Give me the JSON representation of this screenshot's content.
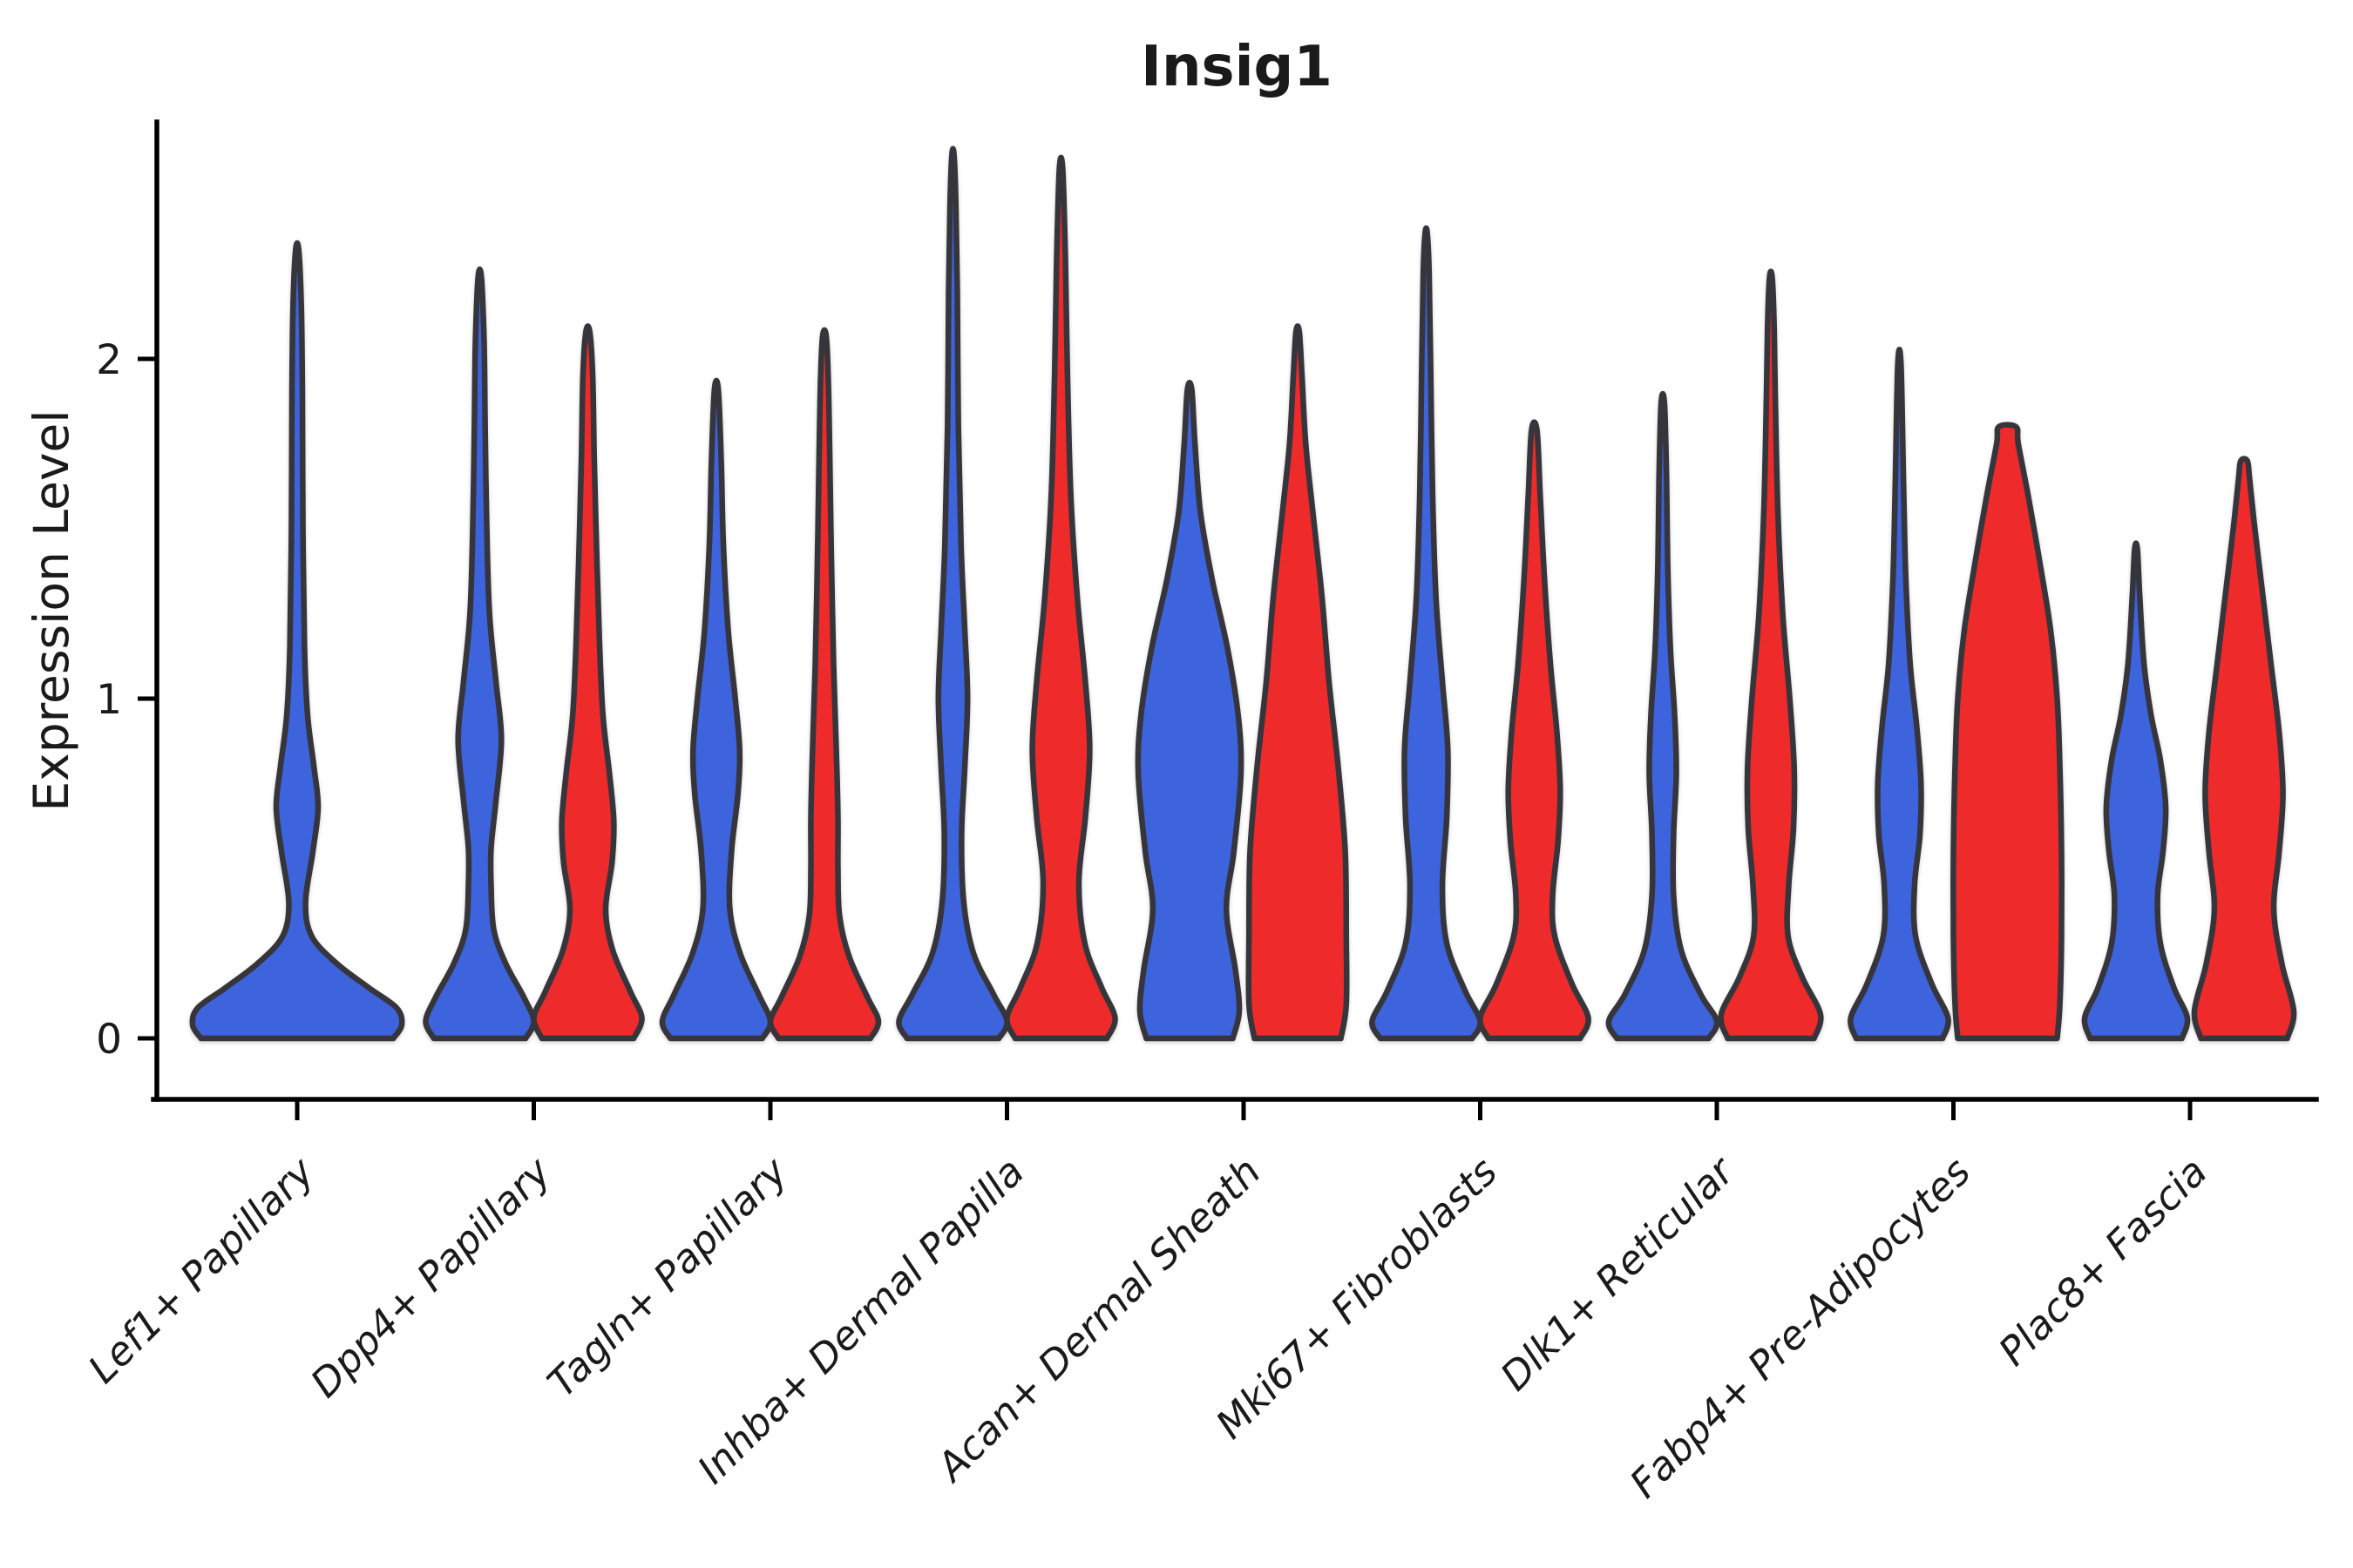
{
  "chart_data": {
    "type": "violin",
    "title": "Insig1",
    "ylabel": "Expression Level",
    "xlabel": "",
    "yticks": [
      "0",
      "1",
      "2"
    ],
    "ytick_values": [
      0,
      1,
      2
    ],
    "ylim": [
      0,
      2.72
    ],
    "grid": false,
    "legend": "none",
    "x_label_rotation_deg": 45,
    "x_label_style": "italic",
    "categories": [
      "Lef1+ Papillary",
      "Dpp4+ Papillary",
      "Tagln+ Papillary",
      "Inhba+ Dermal Papilla",
      "Acan+ Dermal Sheath",
      "Mki67+ Fibroblasts",
      "Dlk1+ Reticular",
      "Fabp4+ Pre-Adipocytes",
      "Plac8+ Fascia"
    ],
    "series_colors": {
      "blue": "#3E63DD",
      "red": "#EE2C2C"
    },
    "outline_color": "#35353a",
    "violins": [
      {
        "category": "Lef1+ Papillary",
        "color": "blue",
        "side": "center",
        "peak": 2.32,
        "half_width": 120,
        "profile": [
          [
            0,
            0.92
          ],
          [
            0.04,
            1.0
          ],
          [
            0.09,
            0.95
          ],
          [
            0.15,
            0.68
          ],
          [
            0.22,
            0.38
          ],
          [
            0.3,
            0.14
          ],
          [
            0.4,
            0.08
          ],
          [
            0.55,
            0.15
          ],
          [
            0.68,
            0.2
          ],
          [
            0.8,
            0.16
          ],
          [
            0.95,
            0.1
          ],
          [
            1.15,
            0.07
          ],
          [
            1.5,
            0.055
          ],
          [
            1.9,
            0.05
          ],
          [
            2.15,
            0.04
          ],
          [
            2.32,
            0.015
          ]
        ]
      },
      {
        "category": "Dpp4+ Papillary",
        "color": "blue",
        "side": "left",
        "peak": 2.24,
        "half_width": 62,
        "profile": [
          [
            0,
            0.85
          ],
          [
            0.05,
            1.0
          ],
          [
            0.12,
            0.82
          ],
          [
            0.22,
            0.48
          ],
          [
            0.32,
            0.26
          ],
          [
            0.45,
            0.21
          ],
          [
            0.56,
            0.21
          ],
          [
            0.7,
            0.3
          ],
          [
            0.88,
            0.4
          ],
          [
            1.05,
            0.3
          ],
          [
            1.25,
            0.18
          ],
          [
            1.5,
            0.13
          ],
          [
            1.8,
            0.1
          ],
          [
            2.05,
            0.08
          ],
          [
            2.24,
            0.03
          ]
        ]
      },
      {
        "category": "Dpp4+ Papillary",
        "color": "red",
        "side": "right",
        "peak": 2.08,
        "half_width": 62,
        "profile": [
          [
            0,
            0.85
          ],
          [
            0.06,
            1.0
          ],
          [
            0.14,
            0.78
          ],
          [
            0.26,
            0.46
          ],
          [
            0.38,
            0.33
          ],
          [
            0.52,
            0.45
          ],
          [
            0.64,
            0.48
          ],
          [
            0.78,
            0.4
          ],
          [
            0.95,
            0.28
          ],
          [
            1.15,
            0.22
          ],
          [
            1.4,
            0.17
          ],
          [
            1.7,
            0.12
          ],
          [
            1.95,
            0.09
          ],
          [
            2.08,
            0.035
          ]
        ]
      },
      {
        "category": "Tagln+ Papillary",
        "color": "blue",
        "side": "left",
        "peak": 1.91,
        "half_width": 62,
        "profile": [
          [
            0,
            0.85
          ],
          [
            0.05,
            1.0
          ],
          [
            0.13,
            0.78
          ],
          [
            0.25,
            0.44
          ],
          [
            0.38,
            0.25
          ],
          [
            0.55,
            0.28
          ],
          [
            0.72,
            0.4
          ],
          [
            0.85,
            0.43
          ],
          [
            1.0,
            0.35
          ],
          [
            1.2,
            0.22
          ],
          [
            1.45,
            0.13
          ],
          [
            1.7,
            0.09
          ],
          [
            1.91,
            0.035
          ]
        ]
      },
      {
        "category": "Tagln+ Papillary",
        "color": "red",
        "side": "right",
        "peak": 2.07,
        "half_width": 62,
        "profile": [
          [
            0,
            0.85
          ],
          [
            0.05,
            1.0
          ],
          [
            0.12,
            0.8
          ],
          [
            0.24,
            0.46
          ],
          [
            0.36,
            0.28
          ],
          [
            0.5,
            0.25
          ],
          [
            0.65,
            0.25
          ],
          [
            0.85,
            0.22
          ],
          [
            1.1,
            0.17
          ],
          [
            1.4,
            0.13
          ],
          [
            1.7,
            0.1
          ],
          [
            1.95,
            0.07
          ],
          [
            2.07,
            0.03
          ]
        ]
      },
      {
        "category": "Inhba+ Dermal Papilla",
        "color": "blue",
        "side": "left",
        "peak": 2.6,
        "half_width": 62,
        "profile": [
          [
            0,
            0.85
          ],
          [
            0.05,
            1.0
          ],
          [
            0.13,
            0.75
          ],
          [
            0.25,
            0.38
          ],
          [
            0.4,
            0.2
          ],
          [
            0.6,
            0.16
          ],
          [
            0.8,
            0.22
          ],
          [
            1.0,
            0.27
          ],
          [
            1.2,
            0.22
          ],
          [
            1.45,
            0.15
          ],
          [
            1.8,
            0.1
          ],
          [
            2.2,
            0.08
          ],
          [
            2.45,
            0.055
          ],
          [
            2.6,
            0.02
          ]
        ]
      },
      {
        "category": "Inhba+ Dermal Papilla",
        "color": "red",
        "side": "right",
        "peak": 2.56,
        "half_width": 62,
        "profile": [
          [
            0,
            0.85
          ],
          [
            0.06,
            1.0
          ],
          [
            0.15,
            0.75
          ],
          [
            0.28,
            0.44
          ],
          [
            0.46,
            0.33
          ],
          [
            0.65,
            0.45
          ],
          [
            0.85,
            0.53
          ],
          [
            1.05,
            0.45
          ],
          [
            1.3,
            0.3
          ],
          [
            1.6,
            0.18
          ],
          [
            1.95,
            0.12
          ],
          [
            2.3,
            0.08
          ],
          [
            2.56,
            0.03
          ]
        ]
      },
      {
        "category": "Acan+ Dermal Sheath",
        "color": "blue",
        "side": "left",
        "peak": 1.91,
        "half_width": 62,
        "profile": [
          [
            0,
            0.8
          ],
          [
            0.08,
            0.92
          ],
          [
            0.2,
            0.85
          ],
          [
            0.38,
            0.68
          ],
          [
            0.55,
            0.82
          ],
          [
            0.78,
            0.95
          ],
          [
            0.95,
            0.9
          ],
          [
            1.15,
            0.7
          ],
          [
            1.35,
            0.42
          ],
          [
            1.55,
            0.2
          ],
          [
            1.75,
            0.1
          ],
          [
            1.91,
            0.04
          ]
        ]
      },
      {
        "category": "Acan+ Dermal Sheath",
        "color": "red",
        "side": "right",
        "peak": 2.08,
        "half_width": 62,
        "profile": [
          [
            0,
            0.8
          ],
          [
            0.1,
            0.9
          ],
          [
            0.3,
            0.9
          ],
          [
            0.55,
            0.88
          ],
          [
            0.8,
            0.75
          ],
          [
            1.05,
            0.58
          ],
          [
            1.3,
            0.45
          ],
          [
            1.55,
            0.28
          ],
          [
            1.75,
            0.15
          ],
          [
            1.95,
            0.08
          ],
          [
            2.08,
            0.03
          ]
        ]
      },
      {
        "category": "Mki67+ Fibroblasts",
        "color": "blue",
        "side": "left",
        "peak": 2.37,
        "half_width": 62,
        "profile": [
          [
            0,
            0.85
          ],
          [
            0.05,
            1.0
          ],
          [
            0.14,
            0.72
          ],
          [
            0.28,
            0.38
          ],
          [
            0.45,
            0.3
          ],
          [
            0.65,
            0.38
          ],
          [
            0.85,
            0.4
          ],
          [
            1.05,
            0.3
          ],
          [
            1.3,
            0.18
          ],
          [
            1.6,
            0.12
          ],
          [
            2.0,
            0.08
          ],
          [
            2.25,
            0.055
          ],
          [
            2.37,
            0.02
          ]
        ]
      },
      {
        "category": "Mki67+ Fibroblasts",
        "color": "red",
        "side": "right",
        "peak": 1.79,
        "half_width": 62,
        "profile": [
          [
            0,
            0.85
          ],
          [
            0.06,
            1.0
          ],
          [
            0.16,
            0.7
          ],
          [
            0.3,
            0.38
          ],
          [
            0.42,
            0.34
          ],
          [
            0.58,
            0.44
          ],
          [
            0.73,
            0.48
          ],
          [
            0.9,
            0.42
          ],
          [
            1.1,
            0.3
          ],
          [
            1.35,
            0.19
          ],
          [
            1.6,
            0.11
          ],
          [
            1.79,
            0.05
          ]
        ]
      },
      {
        "category": "Dlk1+ Reticular",
        "color": "blue",
        "side": "left",
        "peak": 1.87,
        "half_width": 62,
        "profile": [
          [
            0,
            0.85
          ],
          [
            0.05,
            1.0
          ],
          [
            0.13,
            0.7
          ],
          [
            0.26,
            0.34
          ],
          [
            0.42,
            0.2
          ],
          [
            0.6,
            0.2
          ],
          [
            0.78,
            0.25
          ],
          [
            0.95,
            0.22
          ],
          [
            1.15,
            0.14
          ],
          [
            1.4,
            0.09
          ],
          [
            1.65,
            0.07
          ],
          [
            1.87,
            0.03
          ]
        ]
      },
      {
        "category": "Dlk1+ Reticular",
        "color": "red",
        "side": "right",
        "peak": 2.24,
        "half_width": 62,
        "profile": [
          [
            0,
            0.8
          ],
          [
            0.07,
            0.92
          ],
          [
            0.18,
            0.58
          ],
          [
            0.3,
            0.32
          ],
          [
            0.45,
            0.33
          ],
          [
            0.62,
            0.42
          ],
          [
            0.8,
            0.43
          ],
          [
            1.0,
            0.35
          ],
          [
            1.25,
            0.22
          ],
          [
            1.55,
            0.13
          ],
          [
            1.9,
            0.08
          ],
          [
            2.1,
            0.06
          ],
          [
            2.24,
            0.025
          ]
        ]
      },
      {
        "category": "Fabp4+ Pre-Adipocytes",
        "color": "blue",
        "side": "left",
        "peak": 1.98,
        "half_width": 62,
        "profile": [
          [
            0,
            0.8
          ],
          [
            0.06,
            0.9
          ],
          [
            0.16,
            0.6
          ],
          [
            0.3,
            0.3
          ],
          [
            0.45,
            0.28
          ],
          [
            0.6,
            0.38
          ],
          [
            0.75,
            0.4
          ],
          [
            0.92,
            0.32
          ],
          [
            1.1,
            0.2
          ],
          [
            1.35,
            0.12
          ],
          [
            1.6,
            0.08
          ],
          [
            1.98,
            0.03
          ]
        ]
      },
      {
        "category": "Fabp4+ Pre-Adipocytes",
        "color": "red",
        "side": "right",
        "peak": 1.8,
        "half_width": 62,
        "flat_top": true,
        "profile": [
          [
            0,
            0.92
          ],
          [
            0.1,
            0.97
          ],
          [
            0.3,
            1.0
          ],
          [
            0.55,
            1.0
          ],
          [
            0.8,
            0.97
          ],
          [
            1.0,
            0.92
          ],
          [
            1.2,
            0.8
          ],
          [
            1.4,
            0.6
          ],
          [
            1.6,
            0.38
          ],
          [
            1.75,
            0.2
          ],
          [
            1.8,
            0.16
          ]
        ]
      },
      {
        "category": "Plac8+ Fascia",
        "color": "blue",
        "side": "left",
        "peak": 1.44,
        "half_width": 62,
        "profile": [
          [
            0,
            0.85
          ],
          [
            0.06,
            0.95
          ],
          [
            0.15,
            0.7
          ],
          [
            0.28,
            0.45
          ],
          [
            0.42,
            0.4
          ],
          [
            0.55,
            0.5
          ],
          [
            0.68,
            0.55
          ],
          [
            0.82,
            0.45
          ],
          [
            0.95,
            0.28
          ],
          [
            1.1,
            0.15
          ],
          [
            1.3,
            0.07
          ],
          [
            1.44,
            0.025
          ]
        ]
      },
      {
        "category": "Plac8+ Fascia",
        "color": "red",
        "side": "right",
        "peak": 1.7,
        "half_width": 62,
        "flat_top": true,
        "profile": [
          [
            0,
            0.8
          ],
          [
            0.08,
            0.92
          ],
          [
            0.22,
            0.7
          ],
          [
            0.38,
            0.55
          ],
          [
            0.55,
            0.65
          ],
          [
            0.72,
            0.72
          ],
          [
            0.9,
            0.65
          ],
          [
            1.1,
            0.5
          ],
          [
            1.3,
            0.35
          ],
          [
            1.5,
            0.2
          ],
          [
            1.65,
            0.1
          ],
          [
            1.7,
            0.06
          ]
        ]
      }
    ]
  }
}
